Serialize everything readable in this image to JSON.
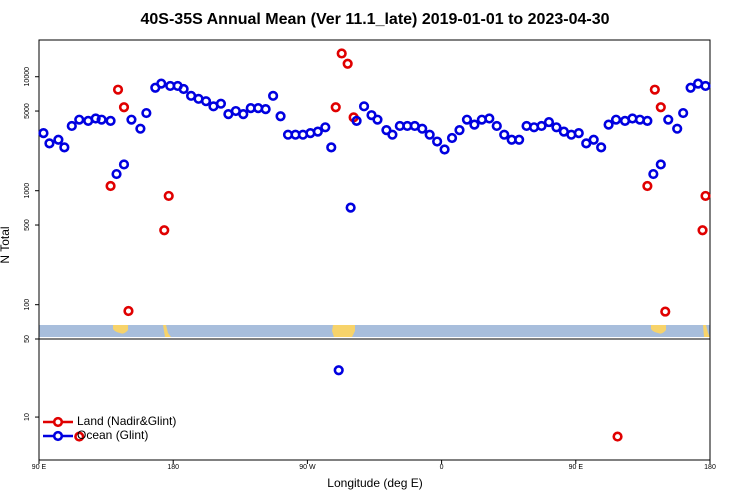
{
  "chart_data": [
    {
      "type": "scatter",
      "title": "40S-35S Annual Mean (Ver 11.1_late)   2019-01-01 to 2023-04-30",
      "y_label": "N Total",
      "log_scale": true,
      "xlim": [
        90,
        540
      ],
      "ylim": [
        50,
        21000
      ],
      "yticks": [
        100,
        500,
        1000,
        5000,
        10000
      ],
      "series": [
        {
          "color": "#e00000",
          "x": [
            138,
            143,
            147,
            150,
            174,
            177,
            289,
            293,
            297,
            301,
            498,
            503,
            507,
            510,
            535,
            537
          ],
          "values": [
            1100,
            7700,
            5400,
            88,
            450,
            900,
            5400,
            16000,
            13000,
            4400,
            1100,
            7700,
            5400,
            87,
            450,
            900
          ]
        },
        {
          "color": "#0000e0",
          "x": [
            93,
            97,
            103,
            107,
            112,
            117,
            123,
            128,
            132,
            138,
            142,
            147,
            152,
            158,
            162,
            168,
            172,
            178,
            183,
            187,
            192,
            197,
            202,
            207,
            212,
            217,
            222,
            227,
            232,
            237,
            242,
            247,
            252,
            257,
            262,
            267,
            272,
            277,
            282,
            286,
            299,
            303,
            308,
            313,
            317,
            323,
            327,
            332,
            337,
            342,
            347,
            352,
            357,
            362,
            367,
            372,
            377,
            382,
            387,
            392,
            397,
            402,
            407,
            412,
            417,
            422,
            427,
            432,
            437,
            442,
            447,
            452,
            457,
            462,
            467,
            472,
            477,
            483,
            488,
            493,
            498,
            502,
            507,
            512,
            518,
            522,
            527,
            532,
            537
          ],
          "values": [
            3200,
            2600,
            2800,
            2400,
            3700,
            4200,
            4100,
            4300,
            4200,
            4100,
            1400,
            1700,
            4200,
            3500,
            4800,
            8000,
            8700,
            8300,
            8300,
            7800,
            6800,
            6400,
            6100,
            5500,
            5800,
            4700,
            5000,
            4700,
            5300,
            5300,
            5200,
            6800,
            4500,
            3100,
            3100,
            3100,
            3200,
            3300,
            3600,
            2400,
            710,
            4100,
            5500,
            4600,
            4200,
            3400,
            3100,
            3700,
            3700,
            3700,
            3500,
            3100,
            2700,
            2300,
            2900,
            3400,
            4200,
            3800,
            4200,
            4300,
            3700,
            3100,
            2800,
            2800,
            3700,
            3600,
            3700,
            4000,
            3600,
            3300,
            3100,
            3200,
            2600,
            2800,
            2400,
            3800,
            4200,
            4100,
            4300,
            4200,
            4100,
            1400,
            1700,
            4200,
            3500,
            4800,
            8000,
            8700,
            8300
          ]
        }
      ]
    },
    {
      "type": "scatter",
      "x_label": "Longitude (deg E)",
      "log_scale": false,
      "xlim": [
        90,
        540
      ],
      "xticks": [
        {
          "value": 90,
          "label": "90 E"
        },
        180,
        {
          "value": 270,
          "label": "90 W"
        },
        {
          "value": 360,
          "label": "0"
        },
        {
          "value": 450,
          "label": "90 E"
        },
        {
          "value": 540,
          "label": "180"
        }
      ],
      "ylim": [
        -12,
        50
      ],
      "yticks": [
        10,
        50
      ],
      "legend": "lower left",
      "series": [
        {
          "name": "Land (Nadir&Glint)",
          "color": "#e00000",
          "x": [
            117,
            478
          ],
          "values": [
            0,
            0
          ]
        },
        {
          "name": "Ocean (Glint)",
          "color": "#0000e0",
          "x": [
            291
          ],
          "values": [
            34
          ]
        }
      ]
    }
  ]
}
